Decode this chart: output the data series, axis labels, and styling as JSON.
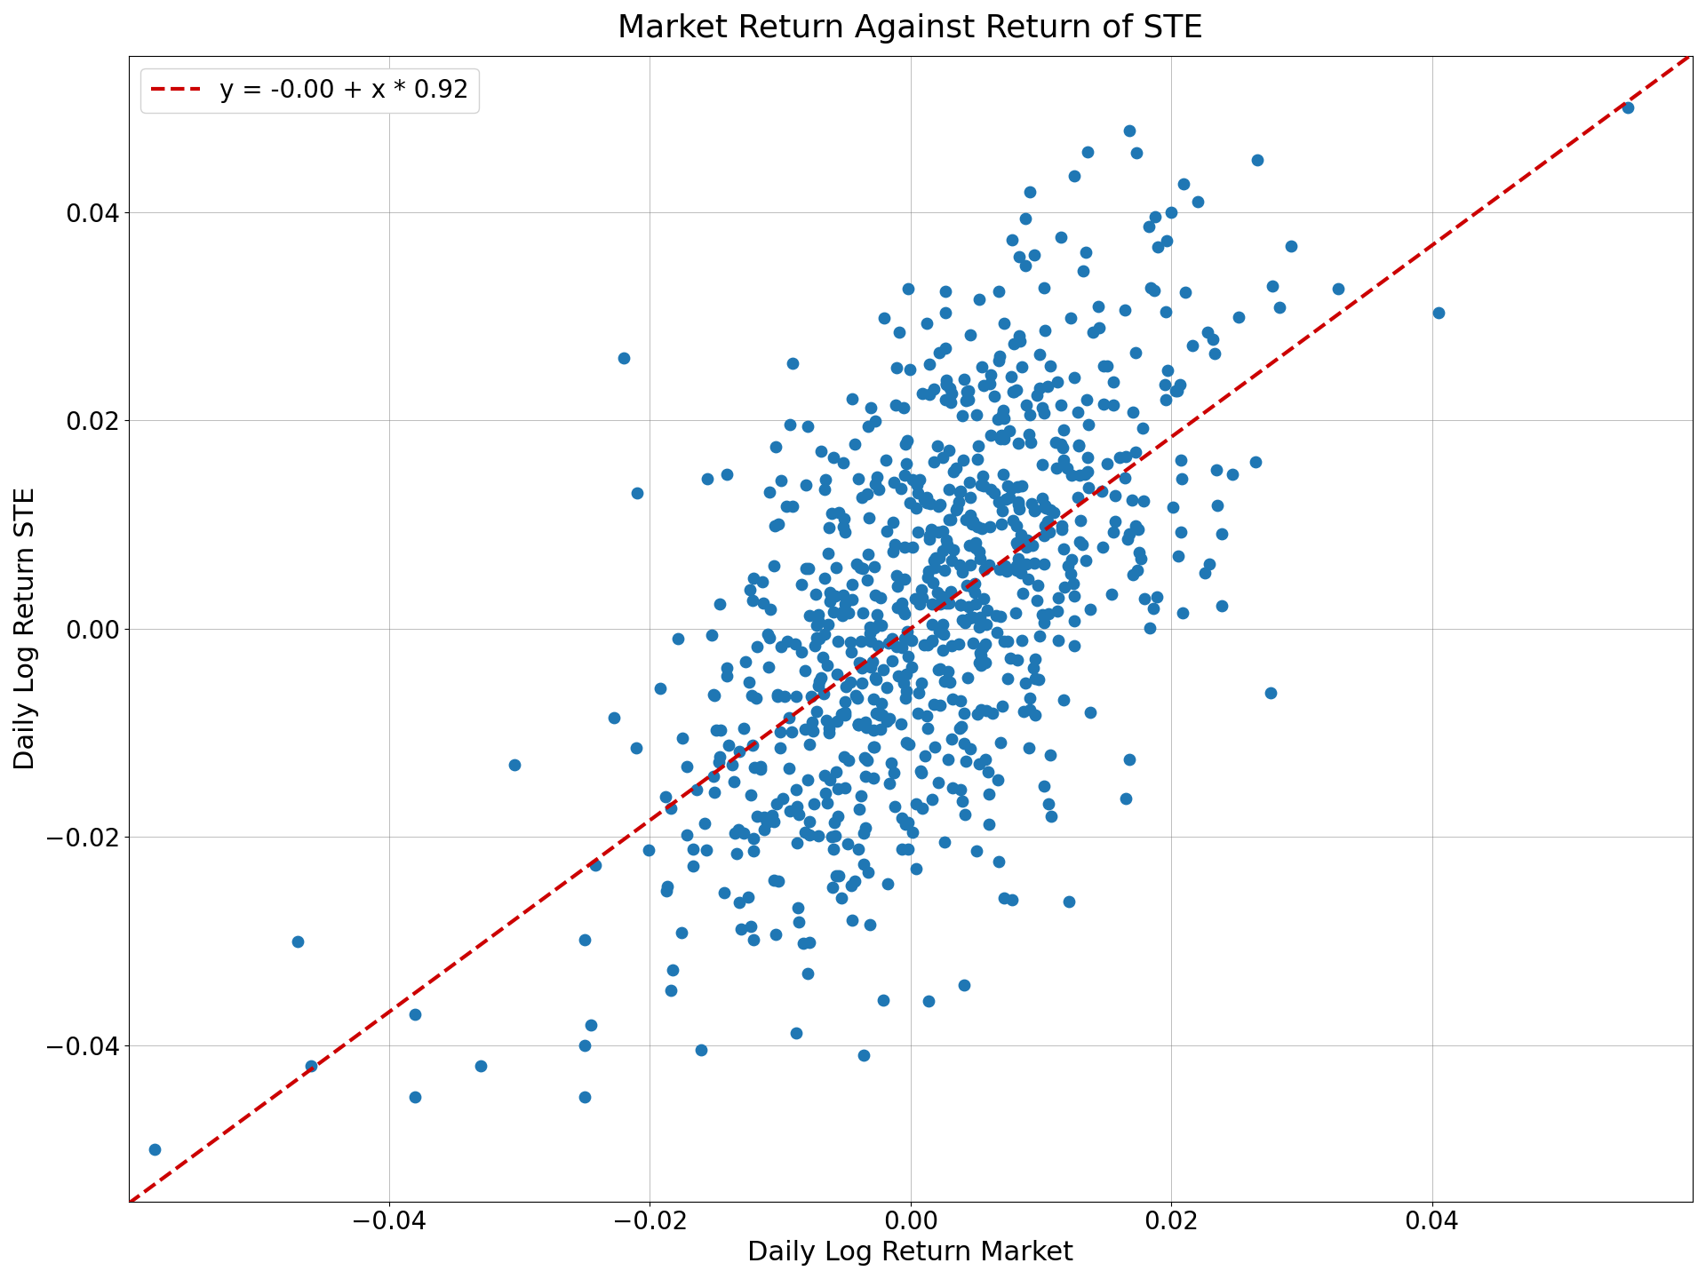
{
  "title": "Market Return Against Return of STE",
  "xlabel": "Daily Log Return Market",
  "ylabel": "Daily Log Return STE",
  "intercept": -0.0,
  "slope": 0.92,
  "legend_label": "y = -0.00 + x * 0.92",
  "dot_color": "#1f77b4",
  "line_color": "#cc0000",
  "xlim": [
    -0.06,
    0.06
  ],
  "ylim": [
    -0.055,
    0.055
  ],
  "xticks": [
    -0.04,
    -0.02,
    0.0,
    0.02,
    0.04
  ],
  "yticks": [
    -0.04,
    -0.02,
    0.0,
    0.02,
    0.04
  ],
  "n_points": 800,
  "seed": 42,
  "market_std": 0.01,
  "noise_std": 0.013,
  "title_fontsize": 26,
  "label_fontsize": 22,
  "tick_fontsize": 20,
  "legend_fontsize": 20,
  "marker_size": 80,
  "line_width": 3.0,
  "figwidth": 19.2,
  "figheight": 14.4,
  "dpi": 100
}
